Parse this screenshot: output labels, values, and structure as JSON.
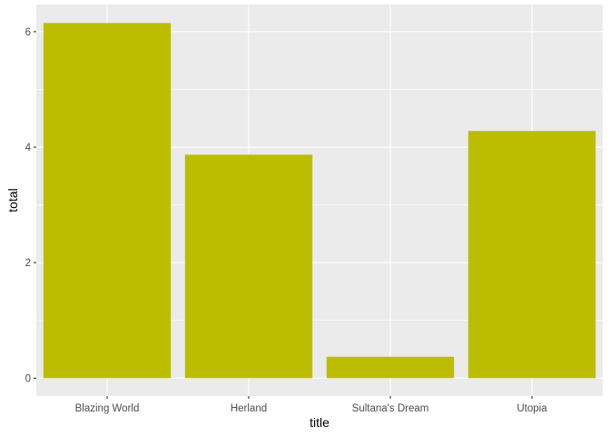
{
  "chart_data": {
    "type": "bar",
    "categories": [
      "Blazing World",
      "Herland",
      "Sultana's Dream",
      "Utopia"
    ],
    "values": [
      6.15,
      3.87,
      0.37,
      4.28
    ],
    "xlabel": "title",
    "ylabel": "total",
    "ylim": [
      -0.31,
      6.47
    ],
    "yticks": [
      0,
      2,
      4,
      6
    ],
    "grid": true,
    "bar_color": "#BDBD00",
    "panel_background": "#EBEBEB",
    "gridline_color": "#FFFFFF"
  }
}
